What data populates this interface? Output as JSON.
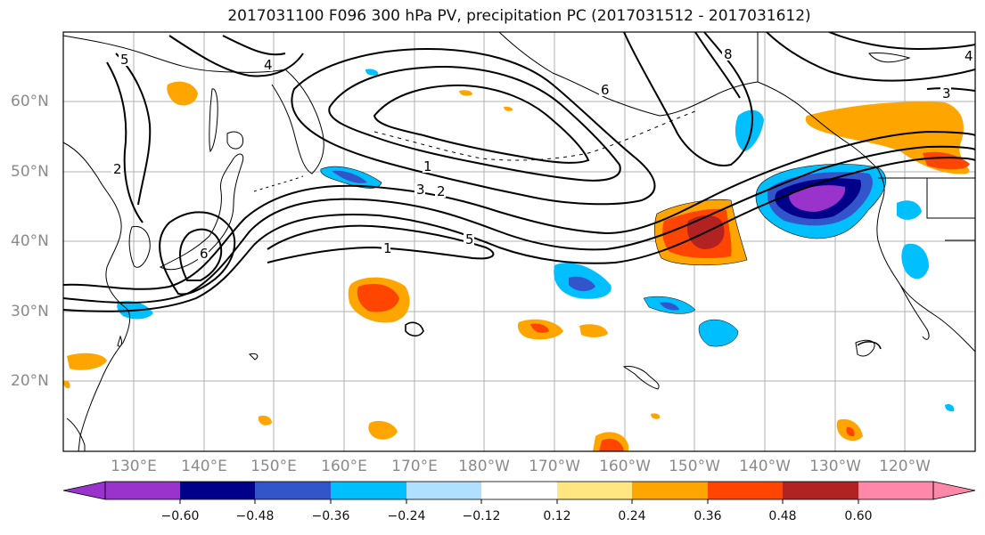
{
  "title": "2017031100 F096 300 hPa PV, precipitation PC (2017031512 - 2017031612)",
  "lat_labels": [
    "60°N",
    "50°N",
    "40°N",
    "30°N",
    "20°N"
  ],
  "lon_labels": [
    "130°E",
    "140°E",
    "150°E",
    "160°E",
    "170°E",
    "180°W",
    "170°W",
    "160°W",
    "150°W",
    "140°W",
    "130°W",
    "120°W"
  ],
  "contour_labels": [
    "1",
    "2",
    "3",
    "4",
    "5",
    "6",
    "8"
  ],
  "colorbar": {
    "ticks": [
      "−0.60",
      "−0.48",
      "−0.36",
      "−0.24",
      "−0.12",
      "0.12",
      "0.24",
      "0.36",
      "0.48",
      "0.60"
    ],
    "colors": [
      "#9933cc",
      "#00008b",
      "#3355cc",
      "#00bfff",
      "#b0e0ff",
      "#ffffff",
      "#ffe680",
      "#ffa500",
      "#ff4500",
      "#b22222",
      "#ff88aa"
    ]
  }
}
